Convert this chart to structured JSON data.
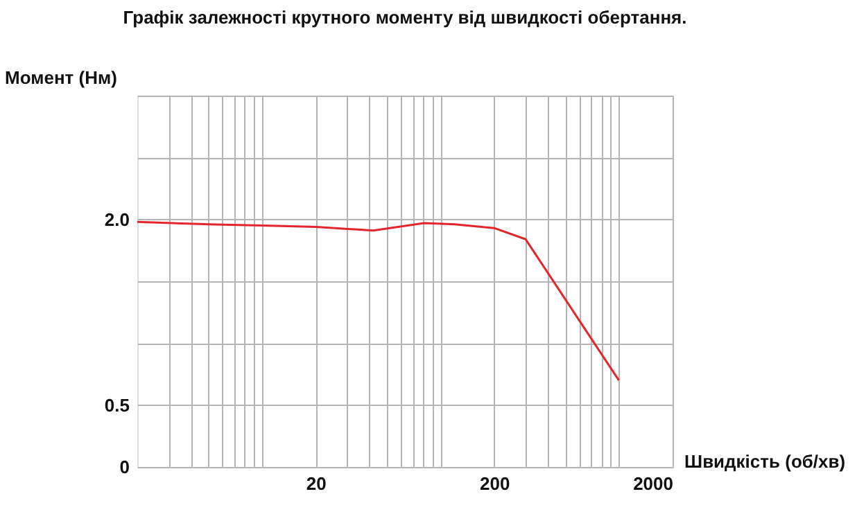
{
  "chart_data": {
    "type": "line",
    "title": "Графік залежності крутного моменту від швидкості обертання.",
    "xlabel": "Швидкість (об/хв)",
    "ylabel": "Момент (Нм)",
    "log": "x",
    "grid": true,
    "marker": "none",
    "line_style": "solid",
    "xlim": [
      2,
      2000
    ],
    "ylim": [
      0,
      3
    ],
    "xticks": [
      {
        "value": 3,
        "label": null
      },
      {
        "value": 4,
        "label": null
      },
      {
        "value": 5,
        "label": null
      },
      {
        "value": 6,
        "label": null
      },
      {
        "value": 7,
        "label": null
      },
      {
        "value": 8,
        "label": null
      },
      {
        "value": 9,
        "label": null
      },
      {
        "value": 10,
        "label": null
      },
      20,
      {
        "value": 30,
        "label": null
      },
      {
        "value": 40,
        "label": null
      },
      {
        "value": 50,
        "label": null
      },
      {
        "value": 60,
        "label": null
      },
      {
        "value": 70,
        "label": null
      },
      {
        "value": 80,
        "label": null
      },
      {
        "value": 90,
        "label": null
      },
      {
        "value": 100,
        "label": null
      },
      200,
      {
        "value": 300,
        "label": null
      },
      {
        "value": 400,
        "label": null
      },
      {
        "value": 500,
        "label": null
      },
      {
        "value": 600,
        "label": null
      },
      {
        "value": 700,
        "label": null
      },
      {
        "value": 800,
        "label": null
      },
      {
        "value": 900,
        "label": null
      },
      {
        "value": 1000,
        "label": null
      },
      2000
    ],
    "yticks": [
      0,
      0.5,
      {
        "value": 1,
        "label": null
      },
      {
        "value": 1.5,
        "label": null
      },
      {
        "value": 2,
        "label": "2.0"
      },
      {
        "value": 2.5,
        "label": null
      },
      {
        "value": 3,
        "label": null
      }
    ],
    "series": [
      {
        "color": "#e3262b",
        "x": [
          2,
          5,
          10,
          20,
          42,
          81,
          120,
          200,
          300,
          1000
        ],
        "values": [
          1.98,
          1.96,
          1.95,
          1.94,
          1.91,
          1.97,
          1.96,
          1.93,
          1.84,
          0.7
        ]
      }
    ]
  }
}
